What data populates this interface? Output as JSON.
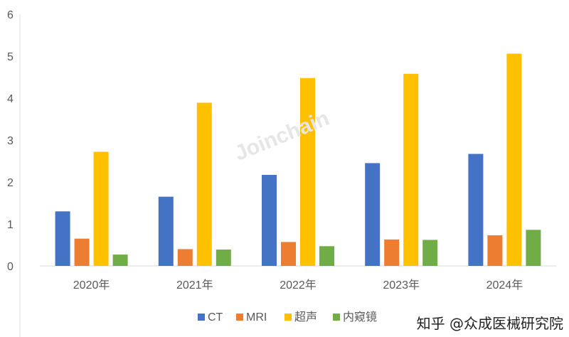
{
  "chart_data": {
    "type": "bar",
    "categories": [
      "2020年",
      "2021年",
      "2022年",
      "2023年",
      "2024年"
    ],
    "series": [
      {
        "name": "CT",
        "color": "#4472C4",
        "values": [
          1.3,
          1.65,
          2.17,
          2.45,
          2.67
        ]
      },
      {
        "name": "MRI",
        "color": "#ED7D31",
        "values": [
          0.65,
          0.4,
          0.57,
          0.63,
          0.73
        ]
      },
      {
        "name": "超声",
        "color": "#FFC000",
        "values": [
          2.72,
          3.89,
          4.48,
          4.58,
          5.06
        ]
      },
      {
        "name": "内窥镜",
        "color": "#70AD47",
        "values": [
          0.27,
          0.39,
          0.47,
          0.62,
          0.86
        ]
      }
    ],
    "ylim": [
      0,
      6
    ],
    "yticks": [
      0,
      1,
      2,
      3,
      4,
      5,
      6
    ],
    "grid": false,
    "legend": "bottom"
  },
  "watermark": "Joinchain",
  "credit": "知乎 @众成医械研究院"
}
